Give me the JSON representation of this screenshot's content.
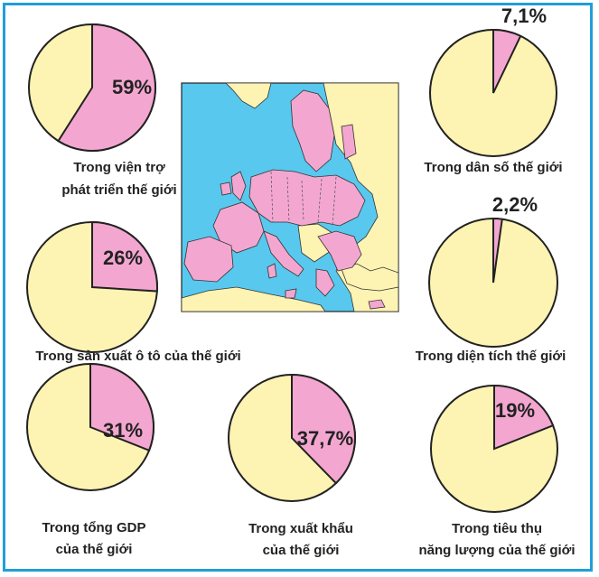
{
  "colors": {
    "eu_share": "#f3a7d0",
    "rest_of_world": "#fdf3b2",
    "outline": "#222222",
    "frame": "#1f9fd9",
    "sea": "#58c8ee",
    "land_other": "#fdf3b2"
  },
  "chart_data": [
    {
      "type": "pie",
      "value": 59,
      "label": "59%",
      "caption": [
        "Trong viện trợ",
        "phát triển thế giới"
      ]
    },
    {
      "type": "pie",
      "value": 26,
      "label": "26%",
      "caption": [
        "Trong sản xuất ô tô của thế giới"
      ]
    },
    {
      "type": "pie",
      "value": 31,
      "label": "31%",
      "caption": [
        "Trong tổng GDP",
        "của thế giới"
      ]
    },
    {
      "type": "pie",
      "value": 37.7,
      "label": "37,7%",
      "caption": [
        "Trong xuất khẩu",
        "của thế giới"
      ]
    },
    {
      "type": "pie",
      "value": 7.1,
      "label": "7,1%",
      "caption": [
        "Trong dân số thế giới"
      ]
    },
    {
      "type": "pie",
      "value": 2.2,
      "label": "2,2%",
      "caption": [
        "Trong diện tích thế giới"
      ]
    },
    {
      "type": "pie",
      "value": 19,
      "label": "19%",
      "caption": [
        "Trong tiêu thụ",
        "năng lượng của thế giới"
      ]
    }
  ],
  "map": {
    "icon": "europe-map-icon"
  }
}
